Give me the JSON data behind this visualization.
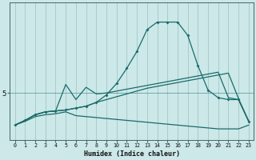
{
  "xlabel": "Humidex (Indice chaleur)",
  "x_labels": [
    "0",
    "1",
    "2",
    "3",
    "4",
    "5",
    "6",
    "7",
    "8",
    "9",
    "10",
    "11",
    "12",
    "13",
    "14",
    "15",
    "16",
    "17",
    "18",
    "19",
    "20",
    "21",
    "22",
    "23"
  ],
  "background_color": "#cce8e8",
  "grid_color": "#aacccc",
  "line_color": "#1a6b6b",
  "hline_y": 5.0,
  "ytick_val": 5.0,
  "ylim": [
    2.5,
    9.8
  ],
  "xlim": [
    -0.5,
    23.5
  ],
  "series1_y": [
    3.3,
    3.55,
    3.85,
    4.0,
    4.05,
    4.1,
    4.2,
    4.3,
    4.5,
    4.9,
    5.5,
    6.3,
    7.2,
    8.35,
    8.75,
    8.75,
    8.75,
    8.05,
    6.45,
    5.15,
    4.75,
    4.65,
    4.65,
    3.5
  ],
  "series2_y": [
    3.3,
    3.55,
    3.85,
    4.0,
    4.05,
    5.45,
    4.65,
    5.3,
    4.95,
    5.0,
    5.1,
    5.2,
    5.3,
    5.4,
    5.5,
    5.6,
    5.7,
    5.8,
    5.9,
    6.0,
    6.1,
    4.75,
    4.65,
    3.5
  ],
  "series3_y": [
    3.3,
    3.55,
    3.85,
    4.0,
    4.05,
    4.1,
    4.2,
    4.3,
    4.5,
    4.65,
    4.8,
    4.95,
    5.1,
    5.25,
    5.35,
    5.45,
    5.55,
    5.65,
    5.75,
    5.85,
    5.95,
    6.05,
    4.7,
    3.5
  ],
  "series4_y": [
    3.3,
    3.5,
    3.75,
    3.85,
    3.9,
    4.0,
    3.8,
    3.75,
    3.7,
    3.65,
    3.6,
    3.55,
    3.5,
    3.45,
    3.4,
    3.35,
    3.3,
    3.25,
    3.2,
    3.15,
    3.1,
    3.1,
    3.1,
    3.3
  ]
}
